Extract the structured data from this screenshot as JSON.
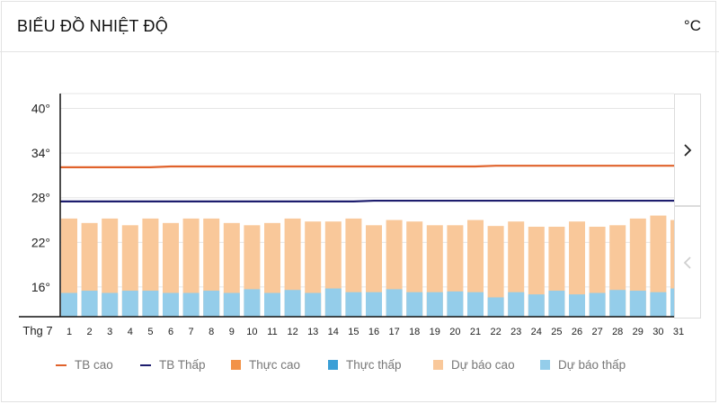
{
  "header": {
    "title": "BIỂU ĐỒ NHIỆT ĐỘ",
    "unit": "°C"
  },
  "nav": {
    "next_icon": "chevron-right-icon",
    "prev_icon": "chevron-left-icon"
  },
  "legend": [
    {
      "label": "TB cao",
      "color": "#e0622b",
      "kind": "line"
    },
    {
      "label": "TB Thấp",
      "color": "#1d1d6e",
      "kind": "line"
    },
    {
      "label": "Thực cao",
      "color": "#f29248",
      "kind": "box"
    },
    {
      "label": "Thực thấp",
      "color": "#3b9fd6",
      "kind": "box"
    },
    {
      "label": "Dự báo cao",
      "color": "#f9c89a",
      "kind": "box"
    },
    {
      "label": "Dự báo thấp",
      "color": "#94cdea",
      "kind": "box"
    }
  ],
  "chart_data": {
    "type": "bar",
    "month_label": "Thg 7",
    "categories": [
      "1",
      "2",
      "3",
      "4",
      "5",
      "6",
      "7",
      "8",
      "9",
      "10",
      "11",
      "12",
      "13",
      "14",
      "15",
      "16",
      "17",
      "18",
      "19",
      "20",
      "21",
      "22",
      "23",
      "24",
      "25",
      "26",
      "27",
      "28",
      "29",
      "30",
      "31"
    ],
    "series": [
      {
        "name": "Dự báo cao",
        "values": [
          25.2,
          24.6,
          25.2,
          24.3,
          25.2,
          24.6,
          25.2,
          25.2,
          24.6,
          24.3,
          24.6,
          25.2,
          24.8,
          24.8,
          25.2,
          24.3,
          25.0,
          24.8,
          24.3,
          24.3,
          25.0,
          24.2,
          24.8,
          24.1,
          24.1,
          24.8,
          24.1,
          24.3,
          25.2,
          25.6,
          25.0
        ]
      },
      {
        "name": "Dự báo thấp",
        "values": [
          15.2,
          15.5,
          15.2,
          15.5,
          15.5,
          15.2,
          15.2,
          15.5,
          15.2,
          15.7,
          15.2,
          15.6,
          15.2,
          15.8,
          15.3,
          15.3,
          15.7,
          15.3,
          15.3,
          15.4,
          15.3,
          14.6,
          15.3,
          15.0,
          15.5,
          15.0,
          15.2,
          15.6,
          15.5,
          15.3,
          15.8
        ]
      },
      {
        "name": "TB cao",
        "values": [
          32.1,
          32.1,
          32.1,
          32.1,
          32.1,
          32.2,
          32.2,
          32.2,
          32.2,
          32.2,
          32.2,
          32.2,
          32.2,
          32.2,
          32.2,
          32.2,
          32.2,
          32.2,
          32.2,
          32.2,
          32.2,
          32.3,
          32.3,
          32.3,
          32.3,
          32.3,
          32.3,
          32.3,
          32.3,
          32.3,
          32.3
        ]
      },
      {
        "name": "TB Thấp",
        "values": [
          27.5,
          27.5,
          27.5,
          27.5,
          27.5,
          27.5,
          27.5,
          27.5,
          27.5,
          27.5,
          27.5,
          27.5,
          27.5,
          27.5,
          27.5,
          27.6,
          27.6,
          27.6,
          27.6,
          27.6,
          27.6,
          27.6,
          27.6,
          27.6,
          27.6,
          27.6,
          27.6,
          27.6,
          27.6,
          27.6,
          27.6
        ]
      }
    ],
    "y_ticks": [
      {
        "value": 40,
        "label": "40°"
      },
      {
        "value": 34,
        "label": "34°"
      },
      {
        "value": 28,
        "label": "28°"
      },
      {
        "value": 22,
        "label": "22°"
      },
      {
        "value": 16,
        "label": "16°"
      }
    ],
    "ylim": [
      12,
      42
    ],
    "grid": true
  }
}
